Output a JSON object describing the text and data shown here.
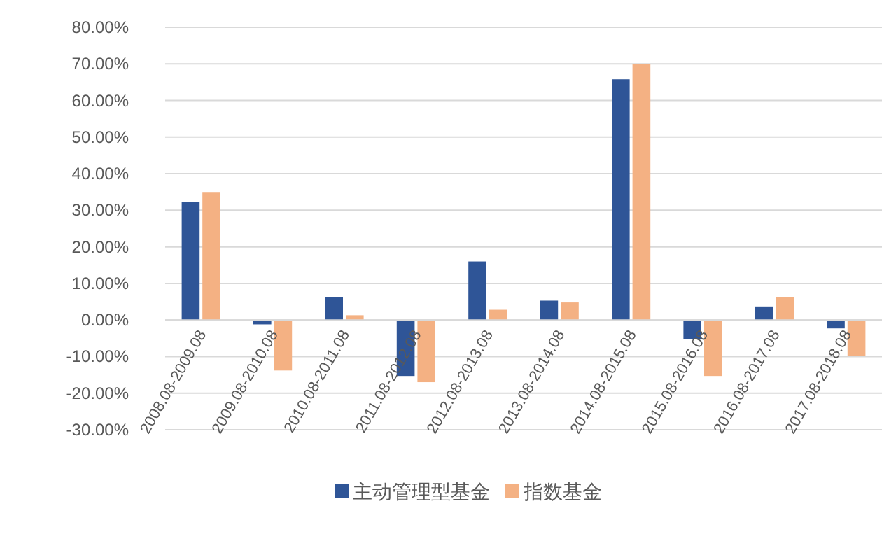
{
  "chart_data": {
    "type": "bar",
    "categories": [
      "2008.08-2009.08",
      "2009.08-2010.08",
      "2010.08-2011.08",
      "2011.08-2012.08",
      "2012.08-2013.08",
      "2013.08-2014.08",
      "2014.08-2015.08",
      "2015.08-2016.08",
      "2016.08-2017.08",
      "2017.08-2018.08"
    ],
    "series": [
      {
        "name": "主动管理型基金",
        "color": "#2f5597",
        "values": [
          32.3,
          -1.2,
          6.3,
          -15.3,
          16,
          5.3,
          65.8,
          -5.2,
          3.7,
          -2.3
        ]
      },
      {
        "name": "指数基金",
        "color": "#f4b183",
        "values": [
          35,
          -13.8,
          1.3,
          -17,
          2.8,
          4.8,
          70,
          -15.3,
          6.3,
          -9.8
        ]
      }
    ],
    "ylim": [
      -30,
      80
    ],
    "yticks": [
      {
        "value": -30,
        "label": "-30.00%"
      },
      {
        "value": -20,
        "label": "-20.00%"
      },
      {
        "value": -10,
        "label": "-10.00%"
      },
      {
        "value": 0,
        "label": "0.00%"
      },
      {
        "value": 10,
        "label": "10.00%"
      },
      {
        "value": 20,
        "label": "20.00%"
      },
      {
        "value": 30,
        "label": "30.00%"
      },
      {
        "value": 40,
        "label": "40.00%"
      },
      {
        "value": 50,
        "label": "50.00%"
      },
      {
        "value": 60,
        "label": "60.00%"
      },
      {
        "value": 70,
        "label": "70.00%"
      },
      {
        "value": 80,
        "label": "80.00%"
      }
    ],
    "grid": "y",
    "legend": "bottom"
  }
}
